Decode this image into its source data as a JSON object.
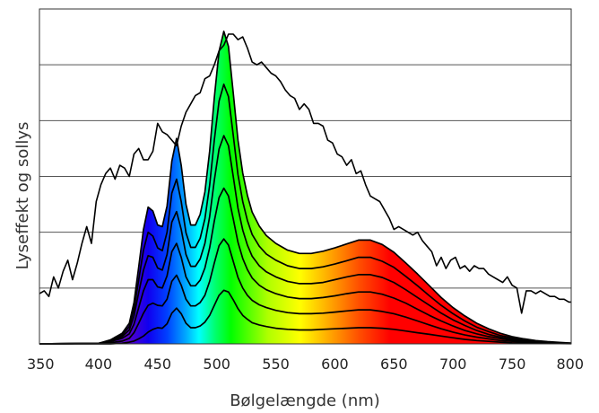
{
  "chart_data": {
    "type": "line",
    "title": "",
    "xlabel": "Bølgelængde (nm)",
    "ylabel": "Lyseffekt og sollys",
    "xlim": [
      350,
      800
    ],
    "x_ticks": [
      "350",
      "400",
      "450",
      "500",
      "550",
      "600",
      "650",
      "700",
      "750",
      "800"
    ],
    "ylim": [
      0,
      6
    ],
    "y_gridlines": [
      1,
      2,
      3,
      4,
      5
    ],
    "y_tick_labels_shown": false,
    "grid": true,
    "legend": "none",
    "fill_gradient": "visible spectrum (violet → blue → cyan → green → yellow → orange → red) under the top LED curve",
    "colors": {
      "curves": "#000000",
      "grid": "#555555",
      "background": "#ffffff"
    },
    "series": [
      {
        "kind": "sunlight",
        "x": [
          350,
          354,
          358,
          362,
          366,
          370,
          374,
          378,
          382,
          386,
          390,
          394,
          398,
          402,
          406,
          410,
          414,
          418,
          422,
          426,
          430,
          434,
          438,
          442,
          446,
          450,
          454,
          458,
          462,
          466,
          470,
          474,
          478,
          482,
          486,
          490,
          494,
          498,
          502,
          506,
          510,
          514,
          518,
          522,
          526,
          530,
          534,
          538,
          542,
          546,
          550,
          554,
          558,
          562,
          566,
          570,
          574,
          578,
          582,
          586,
          590,
          594,
          598,
          602,
          606,
          610,
          614,
          618,
          622,
          626,
          630,
          634,
          638,
          642,
          646,
          650,
          654,
          658,
          662,
          666,
          670,
          674,
          678,
          682,
          686,
          690,
          694,
          698,
          702,
          706,
          710,
          714,
          718,
          722,
          726,
          730,
          734,
          738,
          742,
          746,
          750,
          754,
          758,
          762,
          766,
          770,
          774,
          778,
          782,
          786,
          790,
          794,
          798,
          800
        ],
        "y": [
          0.9,
          0.95,
          0.85,
          1.2,
          1.0,
          1.3,
          1.5,
          1.15,
          1.45,
          1.8,
          2.1,
          1.8,
          2.55,
          2.85,
          3.05,
          3.15,
          2.95,
          3.2,
          3.15,
          3.0,
          3.4,
          3.5,
          3.3,
          3.3,
          3.45,
          3.95,
          3.8,
          3.75,
          3.65,
          3.55,
          3.9,
          4.15,
          4.3,
          4.45,
          4.5,
          4.75,
          4.8,
          5.0,
          5.25,
          5.35,
          5.55,
          5.55,
          5.45,
          5.5,
          5.3,
          5.05,
          5.0,
          5.05,
          4.95,
          4.85,
          4.8,
          4.7,
          4.55,
          4.45,
          4.4,
          4.2,
          4.3,
          4.2,
          3.95,
          3.95,
          3.9,
          3.65,
          3.6,
          3.4,
          3.35,
          3.2,
          3.3,
          3.05,
          3.1,
          2.85,
          2.65,
          2.6,
          2.55,
          2.4,
          2.25,
          2.05,
          2.1,
          2.05,
          2.0,
          1.95,
          2.0,
          1.85,
          1.75,
          1.65,
          1.4,
          1.55,
          1.35,
          1.5,
          1.55,
          1.35,
          1.4,
          1.3,
          1.4,
          1.35,
          1.35,
          1.25,
          1.2,
          1.15,
          1.1,
          1.2,
          1.05,
          1.0,
          0.55,
          0.95,
          0.95,
          0.9,
          0.95,
          0.9,
          0.85,
          0.85,
          0.8,
          0.8,
          0.75,
          0.75
        ]
      },
      {
        "kind": "led-1",
        "x": [
          350,
          400,
          410,
          420,
          426,
          430,
          434,
          438,
          442,
          446,
          450,
          454,
          458,
          462,
          466,
          470,
          474,
          478,
          482,
          486,
          490,
          494,
          498,
          502,
          506,
          510,
          514,
          518,
          522,
          526,
          530,
          536,
          542,
          550,
          560,
          570,
          580,
          590,
          600,
          610,
          620,
          630,
          640,
          650,
          660,
          670,
          680,
          690,
          700,
          710,
          720,
          730,
          740,
          750,
          760,
          770,
          780,
          790,
          800
        ],
        "y": [
          0,
          0,
          0,
          0.01,
          0.03,
          0.05,
          0.09,
          0.14,
          0.21,
          0.26,
          0.29,
          0.28,
          0.36,
          0.55,
          0.64,
          0.54,
          0.37,
          0.29,
          0.29,
          0.32,
          0.39,
          0.51,
          0.69,
          0.87,
          0.96,
          0.93,
          0.79,
          0.63,
          0.51,
          0.44,
          0.38,
          0.34,
          0.31,
          0.28,
          0.26,
          0.25,
          0.25,
          0.26,
          0.27,
          0.28,
          0.29,
          0.29,
          0.28,
          0.26,
          0.23,
          0.2,
          0.17,
          0.14,
          0.11,
          0.08,
          0.06,
          0.045,
          0.03,
          0.02,
          0.015,
          0.01,
          0.007,
          0.005,
          0.003
        ]
      },
      {
        "kind": "led-2",
        "x": [
          350,
          400,
          410,
          420,
          426,
          430,
          434,
          438,
          442,
          446,
          450,
          454,
          458,
          462,
          466,
          470,
          474,
          478,
          482,
          486,
          490,
          494,
          498,
          502,
          506,
          510,
          514,
          518,
          522,
          526,
          530,
          536,
          542,
          550,
          560,
          570,
          580,
          590,
          600,
          610,
          620,
          630,
          640,
          650,
          660,
          670,
          680,
          690,
          700,
          710,
          720,
          730,
          740,
          750,
          760,
          770,
          780,
          790,
          800
        ],
        "y": [
          0,
          0.005,
          0.02,
          0.05,
          0.1,
          0.2,
          0.37,
          0.55,
          0.69,
          0.73,
          0.69,
          0.68,
          0.8,
          1.12,
          1.23,
          1.05,
          0.8,
          0.68,
          0.68,
          0.74,
          0.87,
          1.12,
          1.45,
          1.76,
          1.88,
          1.77,
          1.48,
          1.19,
          1.0,
          0.87,
          0.78,
          0.7,
          0.65,
          0.6,
          0.56,
          0.54,
          0.54,
          0.55,
          0.57,
          0.59,
          0.61,
          0.61,
          0.58,
          0.54,
          0.48,
          0.41,
          0.34,
          0.27,
          0.21,
          0.16,
          0.12,
          0.09,
          0.06,
          0.045,
          0.03,
          0.02,
          0.013,
          0.008,
          0.005
        ]
      },
      {
        "kind": "led-3",
        "x": [
          350,
          400,
          410,
          420,
          426,
          430,
          434,
          438,
          442,
          446,
          450,
          454,
          458,
          462,
          466,
          470,
          474,
          478,
          482,
          486,
          490,
          494,
          498,
          502,
          506,
          510,
          514,
          518,
          522,
          526,
          530,
          536,
          542,
          550,
          560,
          570,
          580,
          590,
          600,
          610,
          620,
          630,
          640,
          650,
          660,
          670,
          680,
          690,
          700,
          710,
          720,
          730,
          740,
          750,
          760,
          770,
          780,
          790,
          800
        ],
        "y": [
          0,
          0.01,
          0.04,
          0.1,
          0.18,
          0.35,
          0.65,
          0.95,
          1.15,
          1.15,
          1.02,
          1.0,
          1.22,
          1.65,
          1.8,
          1.55,
          1.2,
          1.04,
          1.04,
          1.14,
          1.36,
          1.72,
          2.2,
          2.62,
          2.79,
          2.65,
          2.24,
          1.82,
          1.53,
          1.33,
          1.18,
          1.05,
          0.97,
          0.9,
          0.84,
          0.81,
          0.81,
          0.83,
          0.86,
          0.9,
          0.93,
          0.93,
          0.89,
          0.82,
          0.73,
          0.62,
          0.51,
          0.41,
          0.32,
          0.24,
          0.18,
          0.13,
          0.095,
          0.065,
          0.045,
          0.03,
          0.02,
          0.012,
          0.008
        ]
      },
      {
        "kind": "led-4",
        "x": [
          350,
          400,
          410,
          420,
          426,
          430,
          434,
          438,
          442,
          446,
          450,
          454,
          458,
          462,
          466,
          470,
          474,
          478,
          482,
          486,
          490,
          494,
          498,
          502,
          506,
          510,
          514,
          518,
          522,
          526,
          530,
          536,
          542,
          550,
          560,
          570,
          580,
          590,
          600,
          610,
          620,
          630,
          640,
          650,
          660,
          670,
          680,
          690,
          700,
          710,
          720,
          730,
          740,
          750,
          760,
          770,
          780,
          790,
          800
        ],
        "y": [
          0,
          0.01,
          0.05,
          0.13,
          0.25,
          0.5,
          0.92,
          1.32,
          1.58,
          1.55,
          1.36,
          1.32,
          1.6,
          2.18,
          2.37,
          2.05,
          1.6,
          1.39,
          1.39,
          1.52,
          1.8,
          2.28,
          2.93,
          3.49,
          3.73,
          3.55,
          3.0,
          2.43,
          2.04,
          1.77,
          1.57,
          1.4,
          1.29,
          1.2,
          1.12,
          1.08,
          1.08,
          1.1,
          1.15,
          1.2,
          1.24,
          1.24,
          1.19,
          1.1,
          0.97,
          0.83,
          0.69,
          0.55,
          0.43,
          0.33,
          0.24,
          0.17,
          0.12,
          0.085,
          0.06,
          0.04,
          0.025,
          0.016,
          0.01
        ]
      },
      {
        "kind": "led-5",
        "x": [
          350,
          400,
          410,
          420,
          426,
          430,
          434,
          438,
          442,
          446,
          450,
          454,
          458,
          462,
          466,
          470,
          474,
          478,
          482,
          486,
          490,
          494,
          498,
          502,
          506,
          510,
          514,
          518,
          522,
          526,
          530,
          536,
          542,
          550,
          560,
          570,
          580,
          590,
          600,
          610,
          620,
          630,
          640,
          650,
          660,
          670,
          680,
          690,
          700,
          710,
          720,
          730,
          740,
          750,
          760,
          770,
          780,
          790,
          800
        ],
        "y": [
          0,
          0.01,
          0.06,
          0.16,
          0.31,
          0.62,
          1.15,
          1.68,
          2.0,
          1.93,
          1.72,
          1.67,
          2.0,
          2.7,
          2.95,
          2.55,
          1.99,
          1.73,
          1.73,
          1.89,
          2.24,
          2.84,
          3.65,
          4.35,
          4.65,
          4.43,
          3.74,
          3.03,
          2.55,
          2.21,
          1.96,
          1.75,
          1.61,
          1.5,
          1.4,
          1.35,
          1.35,
          1.38,
          1.43,
          1.49,
          1.55,
          1.55,
          1.48,
          1.37,
          1.21,
          1.04,
          0.86,
          0.69,
          0.54,
          0.41,
          0.3,
          0.22,
          0.15,
          0.11,
          0.075,
          0.05,
          0.032,
          0.02,
          0.012
        ]
      },
      {
        "kind": "led-6",
        "x": [
          350,
          400,
          410,
          420,
          426,
          430,
          434,
          438,
          442,
          446,
          450,
          454,
          458,
          462,
          466,
          470,
          474,
          478,
          482,
          486,
          490,
          494,
          498,
          502,
          506,
          510,
          514,
          518,
          522,
          526,
          530,
          536,
          542,
          550,
          560,
          570,
          580,
          590,
          600,
          610,
          620,
          630,
          640,
          650,
          660,
          670,
          680,
          690,
          700,
          710,
          720,
          730,
          740,
          750,
          760,
          770,
          780,
          790,
          800
        ],
        "y": [
          0,
          0.01,
          0.07,
          0.19,
          0.37,
          0.74,
          1.38,
          2.05,
          2.45,
          2.38,
          2.13,
          2.1,
          2.47,
          3.27,
          3.68,
          3.2,
          2.5,
          2.13,
          2.13,
          2.32,
          2.72,
          3.45,
          4.41,
          5.24,
          5.6,
          5.33,
          4.5,
          3.65,
          3.06,
          2.66,
          2.36,
          2.11,
          1.94,
          1.8,
          1.68,
          1.62,
          1.62,
          1.66,
          1.72,
          1.79,
          1.86,
          1.86,
          1.78,
          1.64,
          1.45,
          1.25,
          1.04,
          0.83,
          0.65,
          0.5,
          0.37,
          0.27,
          0.19,
          0.13,
          0.09,
          0.06,
          0.04,
          0.025,
          0.015
        ]
      }
    ]
  }
}
